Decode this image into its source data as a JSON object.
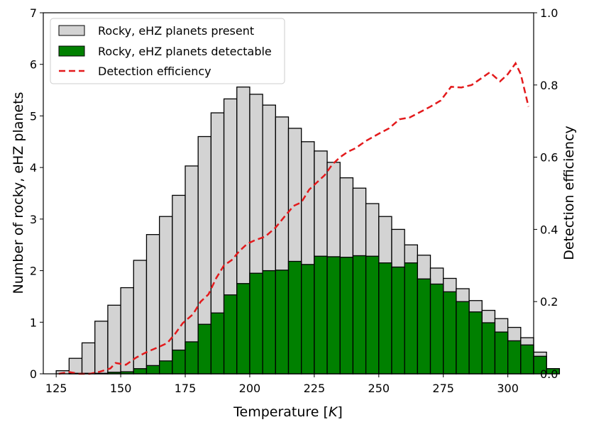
{
  "chart_data": {
    "type": "bar",
    "title": "",
    "xlabel_prefix": "Temperature [",
    "xlabel_var": "K",
    "xlabel_suffix": "]",
    "xlabel": "Temperature [K]",
    "ylabel": "Number of rocky, eHZ planets",
    "y2label": "Detection efficiency",
    "xlim": [
      120,
      310
    ],
    "ylim": [
      0,
      7
    ],
    "y2lim": [
      0,
      1.0
    ],
    "x_ticks": [
      125,
      150,
      175,
      200,
      225,
      250,
      275,
      300
    ],
    "y_ticks": [
      0,
      1,
      2,
      3,
      4,
      5,
      6,
      7
    ],
    "y2_ticks": [
      "0.0",
      "0.2",
      "0.4",
      "0.6",
      "0.8",
      "1.0"
    ],
    "bin_start": 125,
    "bin_width": 5,
    "legend": {
      "position": "upper-left",
      "entries": [
        "Rocky, eHZ planets present",
        "Rocky, eHZ planets detectable",
        "Detection efficiency"
      ]
    },
    "colors": {
      "present": "#d3d3d3",
      "detectable": "#008000",
      "efficiency": "#e31a1c",
      "edge": "#000000"
    },
    "series": [
      {
        "name": "Rocky, eHZ planets present",
        "values": [
          0.06,
          0.3,
          0.6,
          1.02,
          1.33,
          1.67,
          2.2,
          2.7,
          3.05,
          3.46,
          4.03,
          4.6,
          5.06,
          5.33,
          5.56,
          5.42,
          5.21,
          4.98,
          4.76,
          4.5,
          4.32,
          4.1,
          3.8,
          3.6,
          3.3,
          3.05,
          2.8,
          2.5,
          2.3,
          2.05,
          1.85,
          1.65,
          1.42,
          1.23,
          1.07,
          0.9,
          0.7,
          0.42,
          0.1
        ]
      },
      {
        "name": "Rocky, eHZ planets detectable",
        "values": [
          0.0,
          0.01,
          0.01,
          0.01,
          0.03,
          0.04,
          0.1,
          0.16,
          0.25,
          0.46,
          0.62,
          0.96,
          1.18,
          1.53,
          1.75,
          1.95,
          2.0,
          2.01,
          2.18,
          2.12,
          2.28,
          2.27,
          2.26,
          2.29,
          2.28,
          2.15,
          2.07,
          2.15,
          1.84,
          1.74,
          1.59,
          1.4,
          1.2,
          0.99,
          0.81,
          0.64,
          0.56,
          0.34,
          0.1
        ]
      },
      {
        "name": "Detection efficiency",
        "x": [
          126,
          130,
          134,
          138,
          142,
          146,
          148,
          152,
          156,
          160,
          164,
          168,
          171,
          174,
          178,
          181,
          184,
          187,
          190,
          193,
          196,
          199,
          202,
          206,
          210,
          214,
          217,
          220,
          223,
          226,
          229,
          232,
          235,
          238,
          241,
          245,
          250,
          254,
          258,
          262,
          266,
          270,
          274,
          278,
          282,
          286,
          290,
          293,
          297,
          300,
          303,
          305,
          308
        ],
        "values": [
          0.0,
          0.005,
          0.0,
          0.0,
          0.006,
          0.015,
          0.03,
          0.025,
          0.045,
          0.06,
          0.072,
          0.085,
          0.11,
          0.14,
          0.165,
          0.2,
          0.22,
          0.265,
          0.3,
          0.315,
          0.34,
          0.36,
          0.37,
          0.38,
          0.405,
          0.44,
          0.465,
          0.475,
          0.51,
          0.53,
          0.55,
          0.58,
          0.6,
          0.615,
          0.625,
          0.645,
          0.665,
          0.68,
          0.705,
          0.71,
          0.725,
          0.74,
          0.757,
          0.795,
          0.793,
          0.8,
          0.82,
          0.835,
          0.81,
          0.83,
          0.86,
          0.83,
          0.74
        ]
      }
    ]
  }
}
